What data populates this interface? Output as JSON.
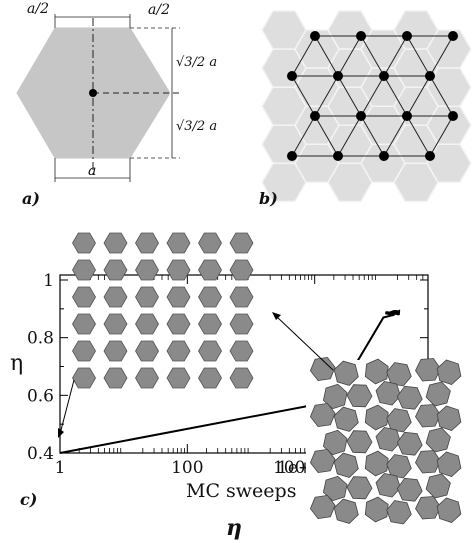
{
  "panel_a": {
    "label": "a)",
    "dim_half_left": "a/2",
    "dim_half_right": "a/2",
    "dim_upper": "√3/2 a",
    "dim_lower": "√3/2 a",
    "dim_bottom": "a",
    "colors": {
      "hexagon": "#c6c6c6",
      "lines": "#222222"
    }
  },
  "panel_b": {
    "label": "b)",
    "colors": {
      "tiles": "#dedede",
      "nodes": "#000000"
    }
  },
  "panel_c": {
    "label": "c)",
    "caption": "η",
    "colors": {
      "tiles": "#8a8a8a",
      "line": "#000000"
    },
    "chart_data": {
      "type": "line",
      "xscale": "log",
      "xlabel": "MC sweeps",
      "ylabel": "η",
      "xlim": [
        1,
        1000000
      ],
      "ylim": [
        0.4,
        1.0
      ],
      "xticks": [
        "1",
        "100",
        "10000",
        "1e+0"
      ],
      "yticks": [
        "0.4",
        "0.6",
        "0.8",
        "1"
      ],
      "series": [
        {
          "x": [
            1,
            20000,
            120000,
            180000,
            300000,
            500000,
            1000000
          ],
          "y": [
            0.4,
            0.58,
            0.87,
            0.88,
            0.885,
            0.89,
            0.89
          ]
        }
      ]
    }
  }
}
